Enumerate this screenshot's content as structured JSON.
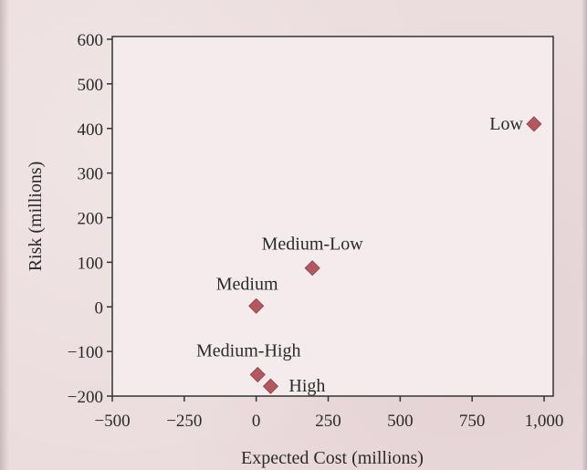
{
  "chart_data": {
    "type": "scatter",
    "title": "",
    "xlabel": "Expected Cost (millions)",
    "ylabel": "Risk (millions)",
    "xlim": [
      -500,
      1000
    ],
    "ylim": [
      -200,
      600
    ],
    "x_ticks": [
      "−500",
      "−250",
      "0",
      "250",
      "500",
      "750",
      "1,000"
    ],
    "y_ticks": [
      "600",
      "500",
      "400",
      "300",
      "200",
      "100",
      "0",
      "−100",
      "−200"
    ],
    "grid": false,
    "marker": "diamond",
    "marker_color": "#b4585f",
    "points": [
      {
        "label": "Low",
        "x": 965,
        "y": 410
      },
      {
        "label": "Medium-Low",
        "x": 195,
        "y": 87
      },
      {
        "label": "Medium",
        "x": 0,
        "y": 2
      },
      {
        "label": "Medium-High",
        "x": 5,
        "y": -152
      },
      {
        "label": "High",
        "x": 50,
        "y": -178
      }
    ]
  }
}
